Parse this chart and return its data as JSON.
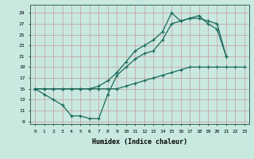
{
  "xlabel": "Humidex (Indice chaleur)",
  "bg_color": "#c8e8e0",
  "line_color": "#1a6b5a",
  "grid_color": "#c8a8a8",
  "xlim": [
    -0.5,
    23.5
  ],
  "ylim": [
    8.5,
    30.5
  ],
  "yticks": [
    9,
    11,
    13,
    15,
    17,
    19,
    21,
    23,
    25,
    27,
    29
  ],
  "xticks": [
    0,
    1,
    2,
    3,
    4,
    5,
    6,
    7,
    8,
    9,
    10,
    11,
    12,
    13,
    14,
    15,
    16,
    17,
    18,
    19,
    20,
    21,
    22,
    23
  ],
  "line1_x": [
    0,
    1,
    2,
    3,
    4,
    5,
    6,
    7,
    8,
    9,
    10,
    11,
    12,
    13,
    14,
    15,
    16,
    17,
    18,
    19,
    20,
    21
  ],
  "line1_y": [
    15,
    14,
    13,
    12,
    10,
    10,
    9.5,
    9.5,
    14,
    17.5,
    19,
    20.5,
    21.5,
    22,
    24,
    27,
    27.5,
    28,
    28.5,
    27,
    26,
    21
  ],
  "line2_x": [
    0,
    1,
    2,
    3,
    4,
    5,
    6,
    7,
    8,
    9,
    10,
    11,
    12,
    13,
    14,
    15,
    16,
    17,
    18,
    19,
    20,
    21,
    22,
    23
  ],
  "line2_y": [
    15,
    15,
    15,
    15,
    15,
    15,
    15,
    15,
    15,
    15,
    15.5,
    16,
    16.5,
    17,
    17.5,
    18,
    18.5,
    19,
    19,
    19,
    19,
    19,
    19,
    19
  ],
  "line3_x": [
    0,
    1,
    2,
    3,
    4,
    5,
    6,
    7,
    8,
    9,
    10,
    11,
    12,
    13,
    14,
    15,
    16,
    17,
    18,
    19,
    20,
    21
  ],
  "line3_y": [
    15,
    15,
    15,
    15,
    15,
    15,
    15,
    15.5,
    16.5,
    18,
    20,
    22,
    23,
    24,
    25.5,
    29,
    27.5,
    28,
    28,
    27.5,
    27,
    21
  ]
}
